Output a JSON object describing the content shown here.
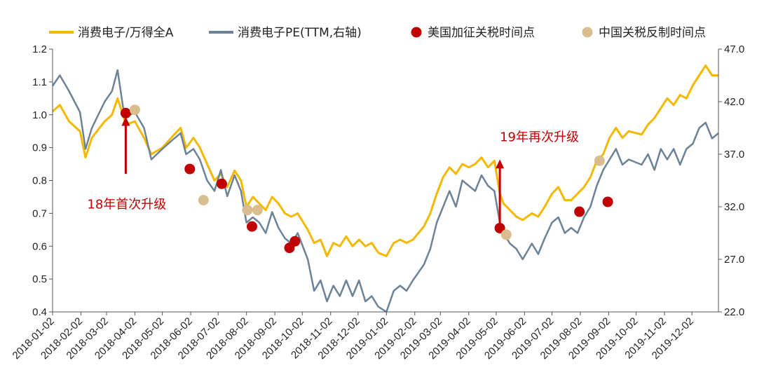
{
  "chart_data": {
    "type": "line",
    "title": "",
    "legend": {
      "placement": "top",
      "items": [
        {
          "label": "消费电子/万得全A",
          "kind": "line",
          "color": "#F5B800"
        },
        {
          "label": "消费电子PE(TTM,右轴)",
          "kind": "line",
          "color": "#6C8296"
        },
        {
          "label": "美国加征关税时间点",
          "kind": "dot",
          "color": "#C00000"
        },
        {
          "label": "中国关税反制时间点",
          "kind": "dot",
          "color": "#D9BD8F"
        }
      ]
    },
    "x_axis": {
      "start": "2018-01-02",
      "end": "2019-12-31",
      "tick_labels": [
        "2018-01-02",
        "2018-02-02",
        "2018-03-02",
        "2018-04-02",
        "2018-05-02",
        "2018-06-02",
        "2018-07-02",
        "2018-08-02",
        "2018-09-02",
        "2018-10-02",
        "2018-11-02",
        "2018-12-02",
        "2019-01-02",
        "2019-02-02",
        "2019-03-02",
        "2019-04-02",
        "2019-05-02",
        "2019-06-02",
        "2019-07-02",
        "2019-08-02",
        "2019-09-02",
        "2019-10-02",
        "2019-11-02",
        "2019-12-02"
      ]
    },
    "y_left": {
      "min": 0.4,
      "max": 1.2,
      "ticks": [
        "0.4",
        "0.5",
        "0.6",
        "0.7",
        "0.8",
        "0.9",
        "1.0",
        "1.1",
        "1.2"
      ]
    },
    "y_right": {
      "min": 22.0,
      "max": 47.0,
      "ticks": [
        "22.0",
        "27.0",
        "32.0",
        "37.0",
        "42.0",
        "47.0"
      ]
    },
    "series": [
      {
        "name": "消费电子/万得全A",
        "axis": "left",
        "color": "#F5B800",
        "points": [
          [
            "2018-01-02",
            1.01
          ],
          [
            "2018-01-10",
            1.03
          ],
          [
            "2018-01-20",
            0.98
          ],
          [
            "2018-02-01",
            0.95
          ],
          [
            "2018-02-07",
            0.87
          ],
          [
            "2018-02-14",
            0.93
          ],
          [
            "2018-02-28",
            0.98
          ],
          [
            "2018-03-08",
            1.0
          ],
          [
            "2018-03-14",
            1.05
          ],
          [
            "2018-03-20",
            1.0
          ],
          [
            "2018-03-23",
            0.97
          ],
          [
            "2018-04-02",
            0.98
          ],
          [
            "2018-04-12",
            0.93
          ],
          [
            "2018-04-20",
            0.88
          ],
          [
            "2018-05-02",
            0.9
          ],
          [
            "2018-05-15",
            0.94
          ],
          [
            "2018-05-22",
            0.96
          ],
          [
            "2018-05-28",
            0.9
          ],
          [
            "2018-06-05",
            0.93
          ],
          [
            "2018-06-12",
            0.9
          ],
          [
            "2018-06-20",
            0.85
          ],
          [
            "2018-06-28",
            0.8
          ],
          [
            "2018-07-05",
            0.82
          ],
          [
            "2018-07-12",
            0.78
          ],
          [
            "2018-07-20",
            0.83
          ],
          [
            "2018-07-27",
            0.8
          ],
          [
            "2018-08-02",
            0.72
          ],
          [
            "2018-08-09",
            0.75
          ],
          [
            "2018-08-16",
            0.73
          ],
          [
            "2018-08-23",
            0.71
          ],
          [
            "2018-08-30",
            0.75
          ],
          [
            "2018-09-06",
            0.73
          ],
          [
            "2018-09-13",
            0.7
          ],
          [
            "2018-09-20",
            0.69
          ],
          [
            "2018-09-27",
            0.7
          ],
          [
            "2018-10-08",
            0.65
          ],
          [
            "2018-10-15",
            0.61
          ],
          [
            "2018-10-22",
            0.62
          ],
          [
            "2018-10-29",
            0.57
          ],
          [
            "2018-11-05",
            0.61
          ],
          [
            "2018-11-12",
            0.6
          ],
          [
            "2018-11-19",
            0.63
          ],
          [
            "2018-11-26",
            0.6
          ],
          [
            "2018-12-03",
            0.62
          ],
          [
            "2018-12-10",
            0.6
          ],
          [
            "2018-12-17",
            0.61
          ],
          [
            "2018-12-24",
            0.58
          ],
          [
            "2019-01-02",
            0.57
          ],
          [
            "2019-01-10",
            0.61
          ],
          [
            "2019-01-17",
            0.62
          ],
          [
            "2019-01-24",
            0.61
          ],
          [
            "2019-01-31",
            0.62
          ],
          [
            "2019-02-12",
            0.66
          ],
          [
            "2019-02-19",
            0.7
          ],
          [
            "2019-02-26",
            0.76
          ],
          [
            "2019-03-05",
            0.81
          ],
          [
            "2019-03-12",
            0.84
          ],
          [
            "2019-03-19",
            0.82
          ],
          [
            "2019-03-26",
            0.85
          ],
          [
            "2019-04-02",
            0.84
          ],
          [
            "2019-04-09",
            0.85
          ],
          [
            "2019-04-16",
            0.87
          ],
          [
            "2019-04-23",
            0.84
          ],
          [
            "2019-04-30",
            0.86
          ],
          [
            "2019-05-06",
            0.76
          ],
          [
            "2019-05-10",
            0.73
          ],
          [
            "2019-05-17",
            0.71
          ],
          [
            "2019-05-24",
            0.69
          ],
          [
            "2019-05-31",
            0.68
          ],
          [
            "2019-06-10",
            0.7
          ],
          [
            "2019-06-17",
            0.69
          ],
          [
            "2019-06-24",
            0.72
          ],
          [
            "2019-07-02",
            0.76
          ],
          [
            "2019-07-09",
            0.78
          ],
          [
            "2019-07-16",
            0.74
          ],
          [
            "2019-07-23",
            0.74
          ],
          [
            "2019-07-30",
            0.76
          ],
          [
            "2019-08-06",
            0.78
          ],
          [
            "2019-08-13",
            0.81
          ],
          [
            "2019-08-20",
            0.86
          ],
          [
            "2019-08-27",
            0.88
          ],
          [
            "2019-09-03",
            0.93
          ],
          [
            "2019-09-10",
            0.96
          ],
          [
            "2019-09-17",
            0.93
          ],
          [
            "2019-09-24",
            0.95
          ],
          [
            "2019-10-08",
            0.94
          ],
          [
            "2019-10-15",
            0.97
          ],
          [
            "2019-10-22",
            0.99
          ],
          [
            "2019-10-29",
            1.02
          ],
          [
            "2019-11-05",
            1.05
          ],
          [
            "2019-11-12",
            1.03
          ],
          [
            "2019-11-19",
            1.06
          ],
          [
            "2019-11-26",
            1.05
          ],
          [
            "2019-12-03",
            1.09
          ],
          [
            "2019-12-10",
            1.12
          ],
          [
            "2019-12-17",
            1.15
          ],
          [
            "2019-12-24",
            1.12
          ],
          [
            "2019-12-31",
            1.12
          ]
        ]
      },
      {
        "name": "消费电子PE(TTM,右轴)",
        "axis": "right",
        "color": "#6C8296",
        "points": [
          [
            "2018-01-02",
            43.5
          ],
          [
            "2018-01-10",
            44.5
          ],
          [
            "2018-01-20",
            43.0
          ],
          [
            "2018-02-01",
            41.0
          ],
          [
            "2018-02-07",
            37.5
          ],
          [
            "2018-02-14",
            39.5
          ],
          [
            "2018-02-28",
            42.0
          ],
          [
            "2018-03-08",
            43.0
          ],
          [
            "2018-03-14",
            45.0
          ],
          [
            "2018-03-20",
            41.5
          ],
          [
            "2018-03-23",
            40.5
          ],
          [
            "2018-04-02",
            41.0
          ],
          [
            "2018-04-12",
            39.5
          ],
          [
            "2018-04-20",
            36.5
          ],
          [
            "2018-05-02",
            37.5
          ],
          [
            "2018-05-15",
            38.5
          ],
          [
            "2018-05-22",
            39.0
          ],
          [
            "2018-05-28",
            37.0
          ],
          [
            "2018-06-05",
            37.5
          ],
          [
            "2018-06-12",
            36.5
          ],
          [
            "2018-06-20",
            34.5
          ],
          [
            "2018-06-28",
            33.5
          ],
          [
            "2018-07-05",
            35.5
          ],
          [
            "2018-07-12",
            33.0
          ],
          [
            "2018-07-20",
            35.0
          ],
          [
            "2018-07-27",
            33.5
          ],
          [
            "2018-08-02",
            30.5
          ],
          [
            "2018-08-09",
            31.0
          ],
          [
            "2018-08-16",
            30.5
          ],
          [
            "2018-08-23",
            29.5
          ],
          [
            "2018-08-30",
            31.5
          ],
          [
            "2018-09-06",
            30.0
          ],
          [
            "2018-09-13",
            29.0
          ],
          [
            "2018-09-20",
            28.5
          ],
          [
            "2018-09-27",
            29.5
          ],
          [
            "2018-10-08",
            27.0
          ],
          [
            "2018-10-15",
            24.0
          ],
          [
            "2018-10-22",
            25.0
          ],
          [
            "2018-10-29",
            23.0
          ],
          [
            "2018-11-05",
            24.5
          ],
          [
            "2018-11-12",
            23.5
          ],
          [
            "2018-11-19",
            25.0
          ],
          [
            "2018-11-26",
            23.5
          ],
          [
            "2018-12-03",
            25.0
          ],
          [
            "2018-12-10",
            23.0
          ],
          [
            "2018-12-17",
            23.5
          ],
          [
            "2018-12-24",
            22.5
          ],
          [
            "2019-01-02",
            22.0
          ],
          [
            "2019-01-10",
            24.0
          ],
          [
            "2019-01-17",
            24.5
          ],
          [
            "2019-01-24",
            24.0
          ],
          [
            "2019-01-31",
            25.0
          ],
          [
            "2019-02-12",
            26.5
          ],
          [
            "2019-02-19",
            28.0
          ],
          [
            "2019-02-26",
            30.5
          ],
          [
            "2019-03-05",
            32.0
          ],
          [
            "2019-03-12",
            33.5
          ],
          [
            "2019-03-19",
            32.0
          ],
          [
            "2019-03-26",
            34.5
          ],
          [
            "2019-04-02",
            34.0
          ],
          [
            "2019-04-09",
            33.5
          ],
          [
            "2019-04-16",
            35.0
          ],
          [
            "2019-04-23",
            34.0
          ],
          [
            "2019-04-30",
            33.5
          ],
          [
            "2019-05-06",
            30.5
          ],
          [
            "2019-05-10",
            29.5
          ],
          [
            "2019-05-17",
            28.5
          ],
          [
            "2019-05-24",
            28.0
          ],
          [
            "2019-05-31",
            27.0
          ],
          [
            "2019-06-10",
            28.5
          ],
          [
            "2019-06-17",
            27.5
          ],
          [
            "2019-06-24",
            29.0
          ],
          [
            "2019-07-02",
            30.5
          ],
          [
            "2019-07-09",
            31.0
          ],
          [
            "2019-07-16",
            29.5
          ],
          [
            "2019-07-23",
            30.0
          ],
          [
            "2019-07-30",
            29.5
          ],
          [
            "2019-08-06",
            31.0
          ],
          [
            "2019-08-13",
            32.0
          ],
          [
            "2019-08-20",
            34.0
          ],
          [
            "2019-08-27",
            35.5
          ],
          [
            "2019-09-03",
            36.5
          ],
          [
            "2019-09-10",
            37.5
          ],
          [
            "2019-09-17",
            36.0
          ],
          [
            "2019-09-24",
            36.5
          ],
          [
            "2019-10-08",
            36.0
          ],
          [
            "2019-10-15",
            37.0
          ],
          [
            "2019-10-22",
            35.5
          ],
          [
            "2019-10-29",
            37.5
          ],
          [
            "2019-11-05",
            36.5
          ],
          [
            "2019-11-12",
            37.5
          ],
          [
            "2019-11-19",
            36.0
          ],
          [
            "2019-11-26",
            37.5
          ],
          [
            "2019-12-03",
            38.0
          ],
          [
            "2019-12-10",
            39.5
          ],
          [
            "2019-12-17",
            40.0
          ],
          [
            "2019-12-24",
            38.5
          ],
          [
            "2019-12-31",
            39.0
          ]
        ]
      }
    ],
    "events": [
      {
        "type": "us",
        "date": "2018-03-23",
        "y": 1.005
      },
      {
        "type": "us",
        "date": "2018-06-01",
        "y": 0.835
      },
      {
        "type": "us",
        "date": "2018-07-06",
        "y": 0.79
      },
      {
        "type": "us",
        "date": "2018-08-08",
        "y": 0.66
      },
      {
        "type": "us",
        "date": "2018-09-18",
        "y": 0.595
      },
      {
        "type": "us",
        "date": "2018-09-24",
        "y": 0.615
      },
      {
        "type": "us",
        "date": "2019-05-06",
        "y": 0.655
      },
      {
        "type": "us",
        "date": "2019-08-01",
        "y": 0.705
      },
      {
        "type": "us",
        "date": "2019-09-01",
        "y": 0.735
      },
      {
        "type": "cn",
        "date": "2018-04-02",
        "y": 1.015
      },
      {
        "type": "cn",
        "date": "2018-06-16",
        "y": 0.74
      },
      {
        "type": "cn",
        "date": "2018-08-03",
        "y": 0.71
      },
      {
        "type": "cn",
        "date": "2018-08-14",
        "y": 0.71
      },
      {
        "type": "cn",
        "date": "2019-05-13",
        "y": 0.635
      },
      {
        "type": "cn",
        "date": "2019-08-23",
        "y": 0.86
      }
    ],
    "annotations": [
      {
        "text": "18年首次升级",
        "date": "2018-03-23",
        "arrow_from": 0.82,
        "arrow_to": 0.99,
        "text_y": 0.715,
        "color": "#C00000"
      },
      {
        "text": "19年再次升级",
        "date": "2019-05-06",
        "arrow_from": 0.66,
        "arrow_to": 0.86,
        "text_y": 0.92,
        "color": "#C00000"
      }
    ]
  }
}
